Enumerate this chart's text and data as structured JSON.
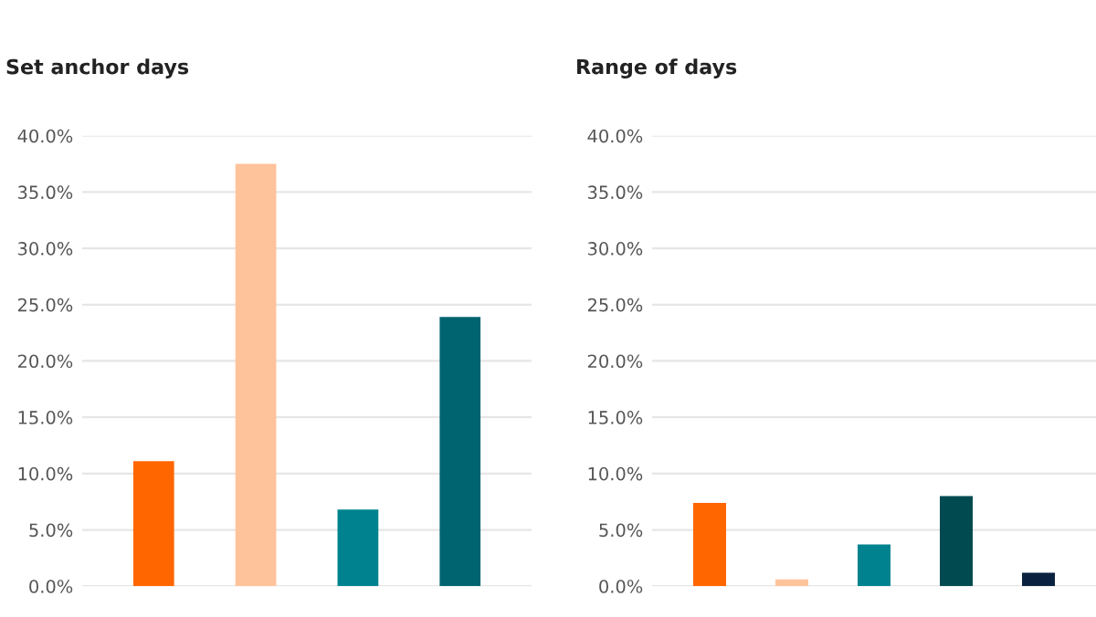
{
  "chart_data": [
    {
      "type": "bar",
      "title": "Set anchor days",
      "categories": [
        null,
        null,
        null,
        null
      ],
      "values": [
        11.1,
        37.5,
        6.8,
        23.9
      ],
      "colors": [
        "#ff6600",
        "#ffc39b",
        "#00838f",
        "#006470"
      ],
      "ylim": [
        0,
        40
      ],
      "yticks": [
        {
          "value": 0,
          "label": "0.0%"
        },
        {
          "value": 5,
          "label": "5.0%"
        },
        {
          "value": 10,
          "label": "10.0%"
        },
        {
          "value": 15,
          "label": "15.0%"
        },
        {
          "value": 20,
          "label": "20.0%"
        },
        {
          "value": 25,
          "label": "25.0%"
        },
        {
          "value": 30,
          "label": "30.0%"
        },
        {
          "value": 35,
          "label": "35.0%"
        },
        {
          "value": 40,
          "label": "40.0%"
        }
      ],
      "grid": "y"
    },
    {
      "type": "bar",
      "title": "Range of days",
      "categories": [
        null,
        null,
        null,
        null,
        null
      ],
      "values": [
        7.4,
        0.6,
        3.7,
        8.0,
        1.2
      ],
      "colors": [
        "#ff6600",
        "#ffc39b",
        "#00838f",
        "#004a50",
        "#0a2240"
      ],
      "ylim": [
        0,
        40
      ],
      "yticks": [
        {
          "value": 0,
          "label": "0.0%"
        },
        {
          "value": 5,
          "label": "5.0%"
        },
        {
          "value": 10,
          "label": "10.0%"
        },
        {
          "value": 15,
          "label": "15.0%"
        },
        {
          "value": 20,
          "label": "20.0%"
        },
        {
          "value": 25,
          "label": "25.0%"
        },
        {
          "value": 30,
          "label": "30.0%"
        },
        {
          "value": 35,
          "label": "35.0%"
        },
        {
          "value": 40,
          "label": "40.0%"
        }
      ],
      "grid": "y"
    }
  ]
}
